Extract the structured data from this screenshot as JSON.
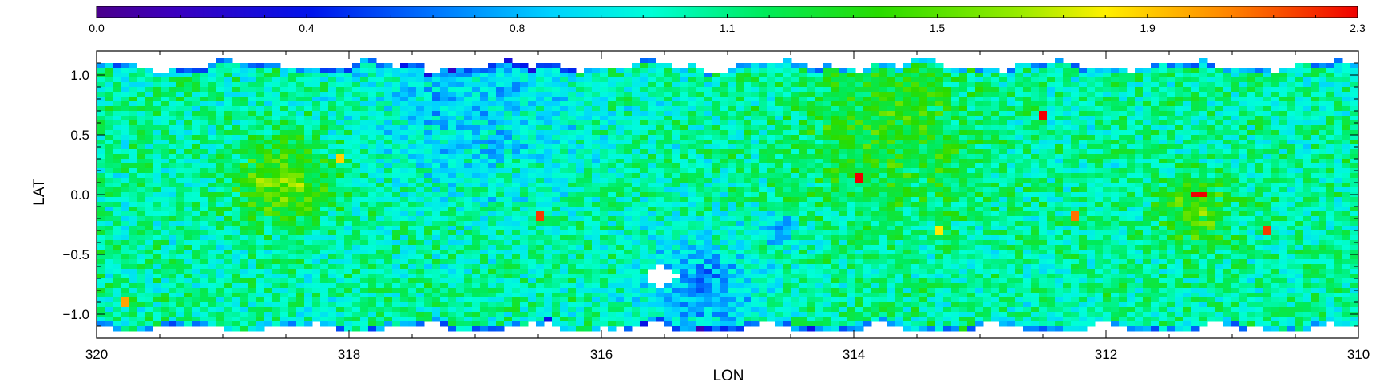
{
  "chart_data": {
    "type": "heatmap",
    "title": "",
    "xlabel": "LON",
    "ylabel": "LAT",
    "xlim": [
      320,
      310
    ],
    "ylim": [
      -1.2,
      1.2
    ],
    "x_ticks": [
      {
        "value": 320,
        "label": "320"
      },
      {
        "value": 318,
        "label": "318"
      },
      {
        "value": 316,
        "label": "316"
      },
      {
        "value": 314,
        "label": "314"
      },
      {
        "value": 312,
        "label": "312"
      },
      {
        "value": 310,
        "label": "310"
      }
    ],
    "y_ticks": [
      {
        "value": 1.0,
        "label": "1.0"
      },
      {
        "value": 0.5,
        "label": "0.5"
      },
      {
        "value": 0.0,
        "label": "0.0"
      },
      {
        "value": -0.5,
        "label": "−0.5"
      },
      {
        "value": -1.0,
        "label": "−1.0"
      }
    ],
    "colorbar": {
      "position": "top",
      "colormap": "rainbow",
      "range": [
        0.0,
        2.3
      ],
      "ticks": [
        {
          "value": 0.0,
          "label": "0.0"
        },
        {
          "value": 0.383,
          "label": "0.4"
        },
        {
          "value": 0.767,
          "label": "0.8"
        },
        {
          "value": 1.15,
          "label": "1.1"
        },
        {
          "value": 1.533,
          "label": "1.5"
        },
        {
          "value": 1.917,
          "label": "1.9"
        },
        {
          "value": 2.3,
          "label": "2.3"
        }
      ]
    },
    "data_extent": {
      "lon": [
        320,
        310
      ],
      "lat": [
        -1.1,
        1.1
      ]
    },
    "typical_value": 1.1,
    "features": [
      {
        "kind": "void",
        "lon": 315.53,
        "lat": -0.68,
        "radius_deg": 0.12
      },
      {
        "kind": "high-region",
        "lon": 318.5,
        "lat": 0.1,
        "value": 1.6,
        "spread_deg": 0.35
      },
      {
        "kind": "high-region",
        "lon": 311.3,
        "lat": -0.15,
        "value": 1.5,
        "spread_deg": 0.3
      },
      {
        "kind": "high-region",
        "lon": 313.7,
        "lat": 0.55,
        "value": 1.4,
        "spread_deg": 0.7
      },
      {
        "kind": "low-region",
        "lon": 315.2,
        "lat": -0.8,
        "value": 0.7,
        "spread_deg": 0.45
      },
      {
        "kind": "low-region",
        "lon": 317.0,
        "lat": 0.85,
        "value": 0.85,
        "spread_deg": 0.9
      },
      {
        "kind": "low-region",
        "lon": 314.6,
        "lat": -0.3,
        "value": 0.6,
        "spread_deg": 0.12
      },
      {
        "kind": "peak",
        "lon": 319.8,
        "lat": -0.9,
        "value": 2.0
      },
      {
        "kind": "peak",
        "lon": 316.47,
        "lat": -0.17,
        "value": 2.2
      },
      {
        "kind": "peak",
        "lon": 313.35,
        "lat": -0.3,
        "value": 1.85
      },
      {
        "kind": "peak",
        "lon": 312.5,
        "lat": 0.67,
        "value": 2.3
      },
      {
        "kind": "peak",
        "lon": 311.27,
        "lat": 0.0,
        "value": 2.3
      },
      {
        "kind": "peak",
        "lon": 310.75,
        "lat": -0.3,
        "value": 2.2
      },
      {
        "kind": "peak",
        "lon": 313.97,
        "lat": 0.13,
        "value": 2.3
      },
      {
        "kind": "peak",
        "lon": 312.25,
        "lat": -0.17,
        "value": 2.1
      },
      {
        "kind": "peak",
        "lon": 318.1,
        "lat": 0.3,
        "value": 1.9
      }
    ]
  }
}
